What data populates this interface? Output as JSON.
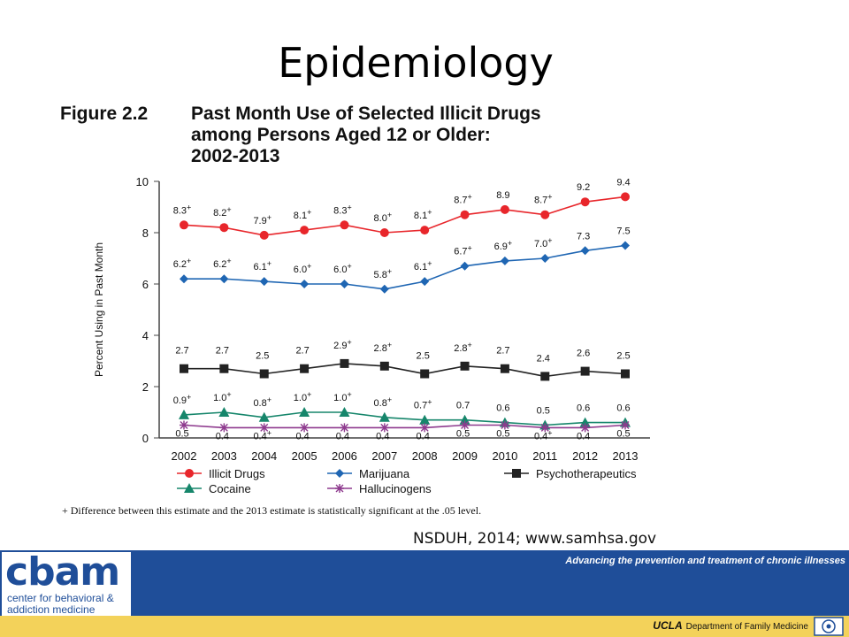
{
  "slide": {
    "title": "Epidemiology",
    "figure_number": "Figure 2.2",
    "figure_title_lines": [
      "Past Month Use of Selected Illicit Drugs",
      "among Persons Aged 12 or Older:",
      "2002-2013"
    ],
    "footnote": "+ Difference between this estimate and the 2013 estimate is statistically significant at the .05 level.",
    "source": "NSDUH, 2014; www.samhsa.gov"
  },
  "footer": {
    "logo_text": "cbam",
    "logo_sub_1": "center for behavioral &",
    "logo_sub_2": "addiction medicine",
    "tagline": "Advancing the prevention and treatment of chronic illnesses",
    "ucla": "UCLA",
    "dept": "Department of Family Medicine",
    "band_color": "#1f4e99",
    "strip_color": "#f3d25a"
  },
  "chart_data": {
    "type": "line",
    "ylabel": "Percent Using in Past Month",
    "xlabel": "",
    "ylim": [
      0,
      10
    ],
    "yticks": [
      0,
      2,
      4,
      6,
      8,
      10
    ],
    "categories": [
      "2002",
      "2003",
      "2004",
      "2005",
      "2006",
      "2007",
      "2008",
      "2009",
      "2010",
      "2011",
      "2012",
      "2013"
    ],
    "legend_position": "bottom",
    "series": [
      {
        "name": "Illicit Drugs",
        "color": "#e8262b",
        "marker": "circle",
        "values": [
          8.3,
          8.2,
          7.9,
          8.1,
          8.3,
          8.0,
          8.1,
          8.7,
          8.9,
          8.7,
          9.2,
          9.4
        ],
        "labels": [
          "8.3+",
          "8.2+",
          "7.9+",
          "8.1+",
          "8.3+",
          "8.0+",
          "8.1+",
          "8.7+",
          "8.9",
          "8.7+",
          "9.2",
          "9.4"
        ]
      },
      {
        "name": "Marijuana",
        "color": "#1f66b3",
        "marker": "diamond",
        "values": [
          6.2,
          6.2,
          6.1,
          6.0,
          6.0,
          5.8,
          6.1,
          6.7,
          6.9,
          7.0,
          7.3,
          7.5
        ],
        "labels": [
          "6.2+",
          "6.2+",
          "6.1+",
          "6.0+",
          "6.0+",
          "5.8+",
          "6.1+",
          "6.7+",
          "6.9+",
          "7.0+",
          "7.3",
          "7.5"
        ]
      },
      {
        "name": "Psychotherapeutics",
        "color": "#222222",
        "marker": "square",
        "values": [
          2.7,
          2.7,
          2.5,
          2.7,
          2.9,
          2.8,
          2.5,
          2.8,
          2.7,
          2.4,
          2.6,
          2.5
        ],
        "labels": [
          "2.7",
          "2.7",
          "2.5",
          "2.7",
          "2.9+",
          "2.8+",
          "2.5",
          "2.8+",
          "2.7",
          "2.4",
          "2.6",
          "2.5"
        ]
      },
      {
        "name": "Cocaine",
        "color": "#16866b",
        "marker": "triangle",
        "values": [
          0.9,
          1.0,
          0.8,
          1.0,
          1.0,
          0.8,
          0.7,
          0.7,
          0.6,
          0.5,
          0.6,
          0.6
        ],
        "labels": [
          "0.9+",
          "1.0+",
          "0.8+",
          "1.0+",
          "1.0+",
          "0.8+",
          "0.7+",
          "0.7",
          "0.6",
          "0.5",
          "0.6",
          "0.6"
        ]
      },
      {
        "name": "Hallucinogens",
        "color": "#8e3a8e",
        "marker": "star",
        "values": [
          0.5,
          0.4,
          0.4,
          0.4,
          0.4,
          0.4,
          0.4,
          0.5,
          0.5,
          0.4,
          0.4,
          0.5
        ],
        "labels": [
          "0.5",
          "0.4",
          "0.4+",
          "0.4",
          "0.4",
          "0.4",
          "0.4",
          "0.5",
          "0.5",
          "0.4+",
          "0.4",
          "0.5"
        ]
      }
    ]
  }
}
